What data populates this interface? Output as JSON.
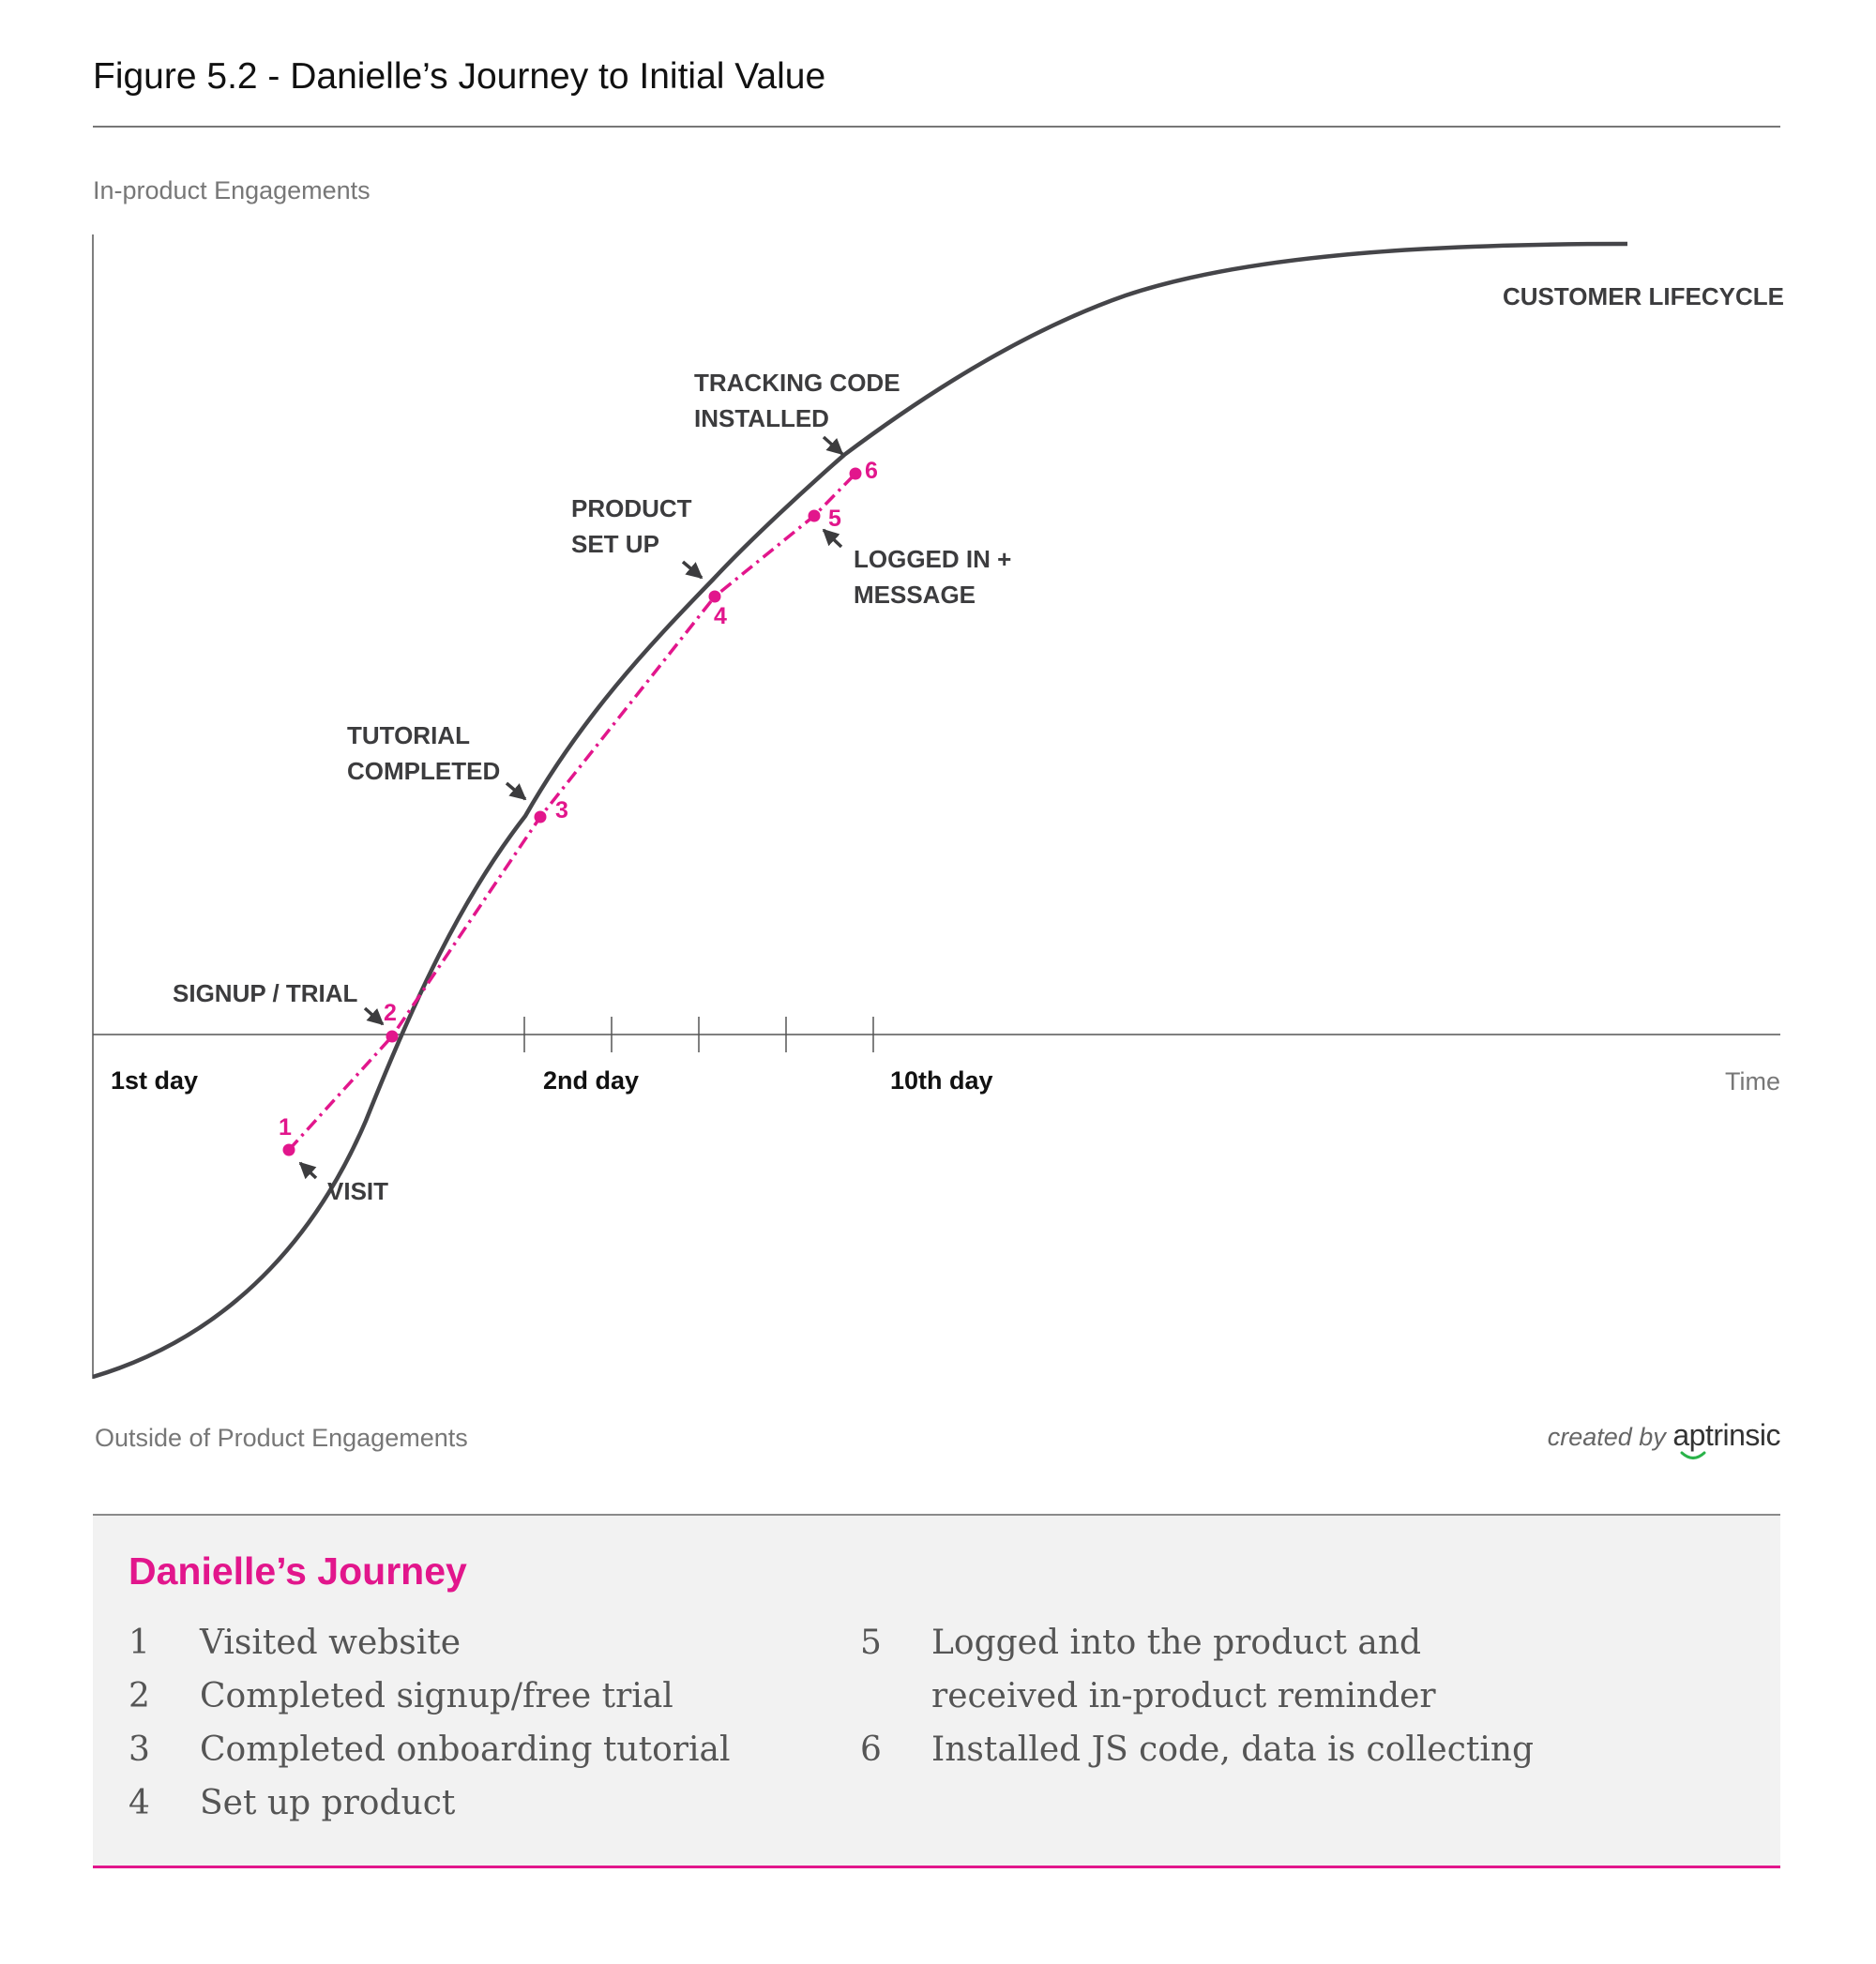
{
  "figure": {
    "title": "Figure 5.2 - Danielle’s Journey to Initial Value"
  },
  "axes": {
    "y_top_label": "In-product Engagements",
    "y_bottom_label": "Outside of Product Engagements",
    "x_label": "Time",
    "day_labels": [
      "1st day",
      "2nd day",
      "10th day"
    ]
  },
  "curve": {
    "label": "CUSTOMER LIFECYCLE",
    "color": "#454549"
  },
  "milestones": [
    {
      "lines": [
        "VISIT"
      ]
    },
    {
      "lines": [
        "SIGNUP / TRIAL"
      ]
    },
    {
      "lines": [
        "TUTORIAL",
        "COMPLETED"
      ]
    },
    {
      "lines": [
        "PRODUCT",
        "SET UP"
      ]
    },
    {
      "lines": [
        "LOGGED IN +",
        "MESSAGE"
      ]
    },
    {
      "lines": [
        "TRACKING CODE",
        "INSTALLED"
      ]
    }
  ],
  "journey": {
    "color": "#e2168c",
    "step_numbers": [
      "1",
      "2",
      "3",
      "4",
      "5",
      "6"
    ]
  },
  "credit": {
    "prefix": "created by",
    "brand": "aptrinsic"
  },
  "legend": {
    "title": "Danielle’s Journey",
    "items": [
      {
        "num": "1",
        "text": "Visited website"
      },
      {
        "num": "2",
        "text": "Completed signup/free trial"
      },
      {
        "num": "3",
        "text": "Completed onboarding tutorial"
      },
      {
        "num": "4",
        "text": "Set up product"
      },
      {
        "num": "5",
        "lines": [
          "Logged into the product and",
          "received in-product reminder"
        ]
      },
      {
        "num": "6",
        "text": "Installed JS code, data is collecting"
      }
    ]
  }
}
